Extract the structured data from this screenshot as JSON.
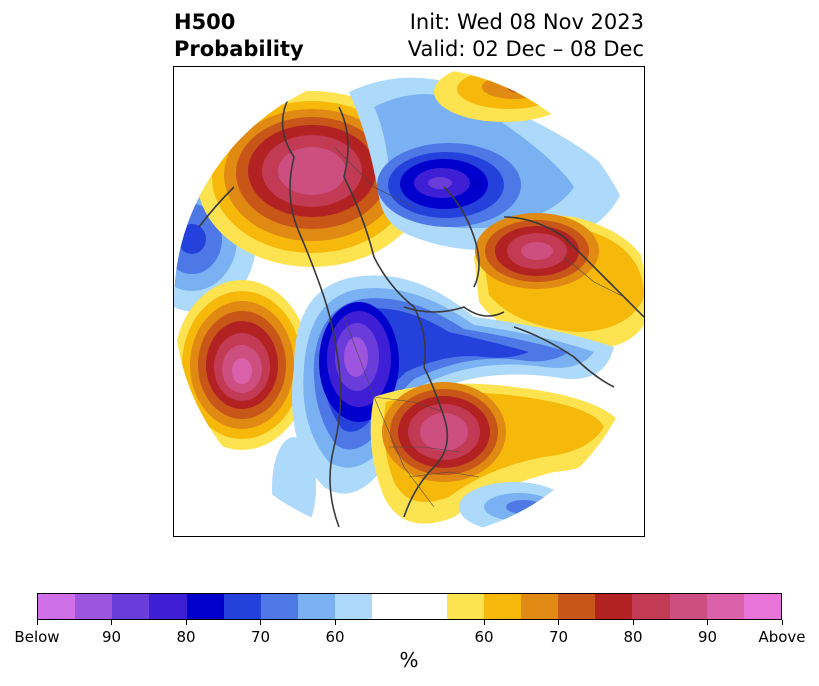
{
  "title": {
    "left": "H500\nProbability",
    "init": "Init: Wed 08 Nov 2023",
    "valid": "Valid: 02 Dec – 08 Dec"
  },
  "colorbar": {
    "label": "%",
    "colors": [
      "#d070e8",
      "#9d55e0",
      "#6a3ddb",
      "#3e1fd6",
      "#0000cc",
      "#2541dc",
      "#4d78e6",
      "#79b1f3",
      "#add9fb",
      "#ffffff",
      "#fee350",
      "#f6b90b",
      "#e08a14",
      "#c75618",
      "#b22222",
      "#c23a53",
      "#cc4f80",
      "#da60aa",
      "#e874da"
    ],
    "ticks": [
      "Below",
      "90",
      "80",
      "70",
      "60",
      "60",
      "70",
      "80",
      "90",
      "Above"
    ]
  },
  "map": {
    "anomalies": [
      {
        "name": "alaska-ridge",
        "sign": "above",
        "level": 18
      },
      {
        "name": "central-trough",
        "sign": "below",
        "level": 16
      },
      {
        "name": "north-atlantic-trough",
        "sign": "below",
        "level": 14
      },
      {
        "name": "europe-ridge",
        "sign": "above",
        "level": 15
      },
      {
        "name": "pacific-ridge",
        "sign": "above",
        "level": 18
      },
      {
        "name": "east-us-ridge",
        "sign": "above",
        "level": 17
      },
      {
        "name": "west-pacific-trough",
        "sign": "below",
        "level": 7
      }
    ]
  }
}
